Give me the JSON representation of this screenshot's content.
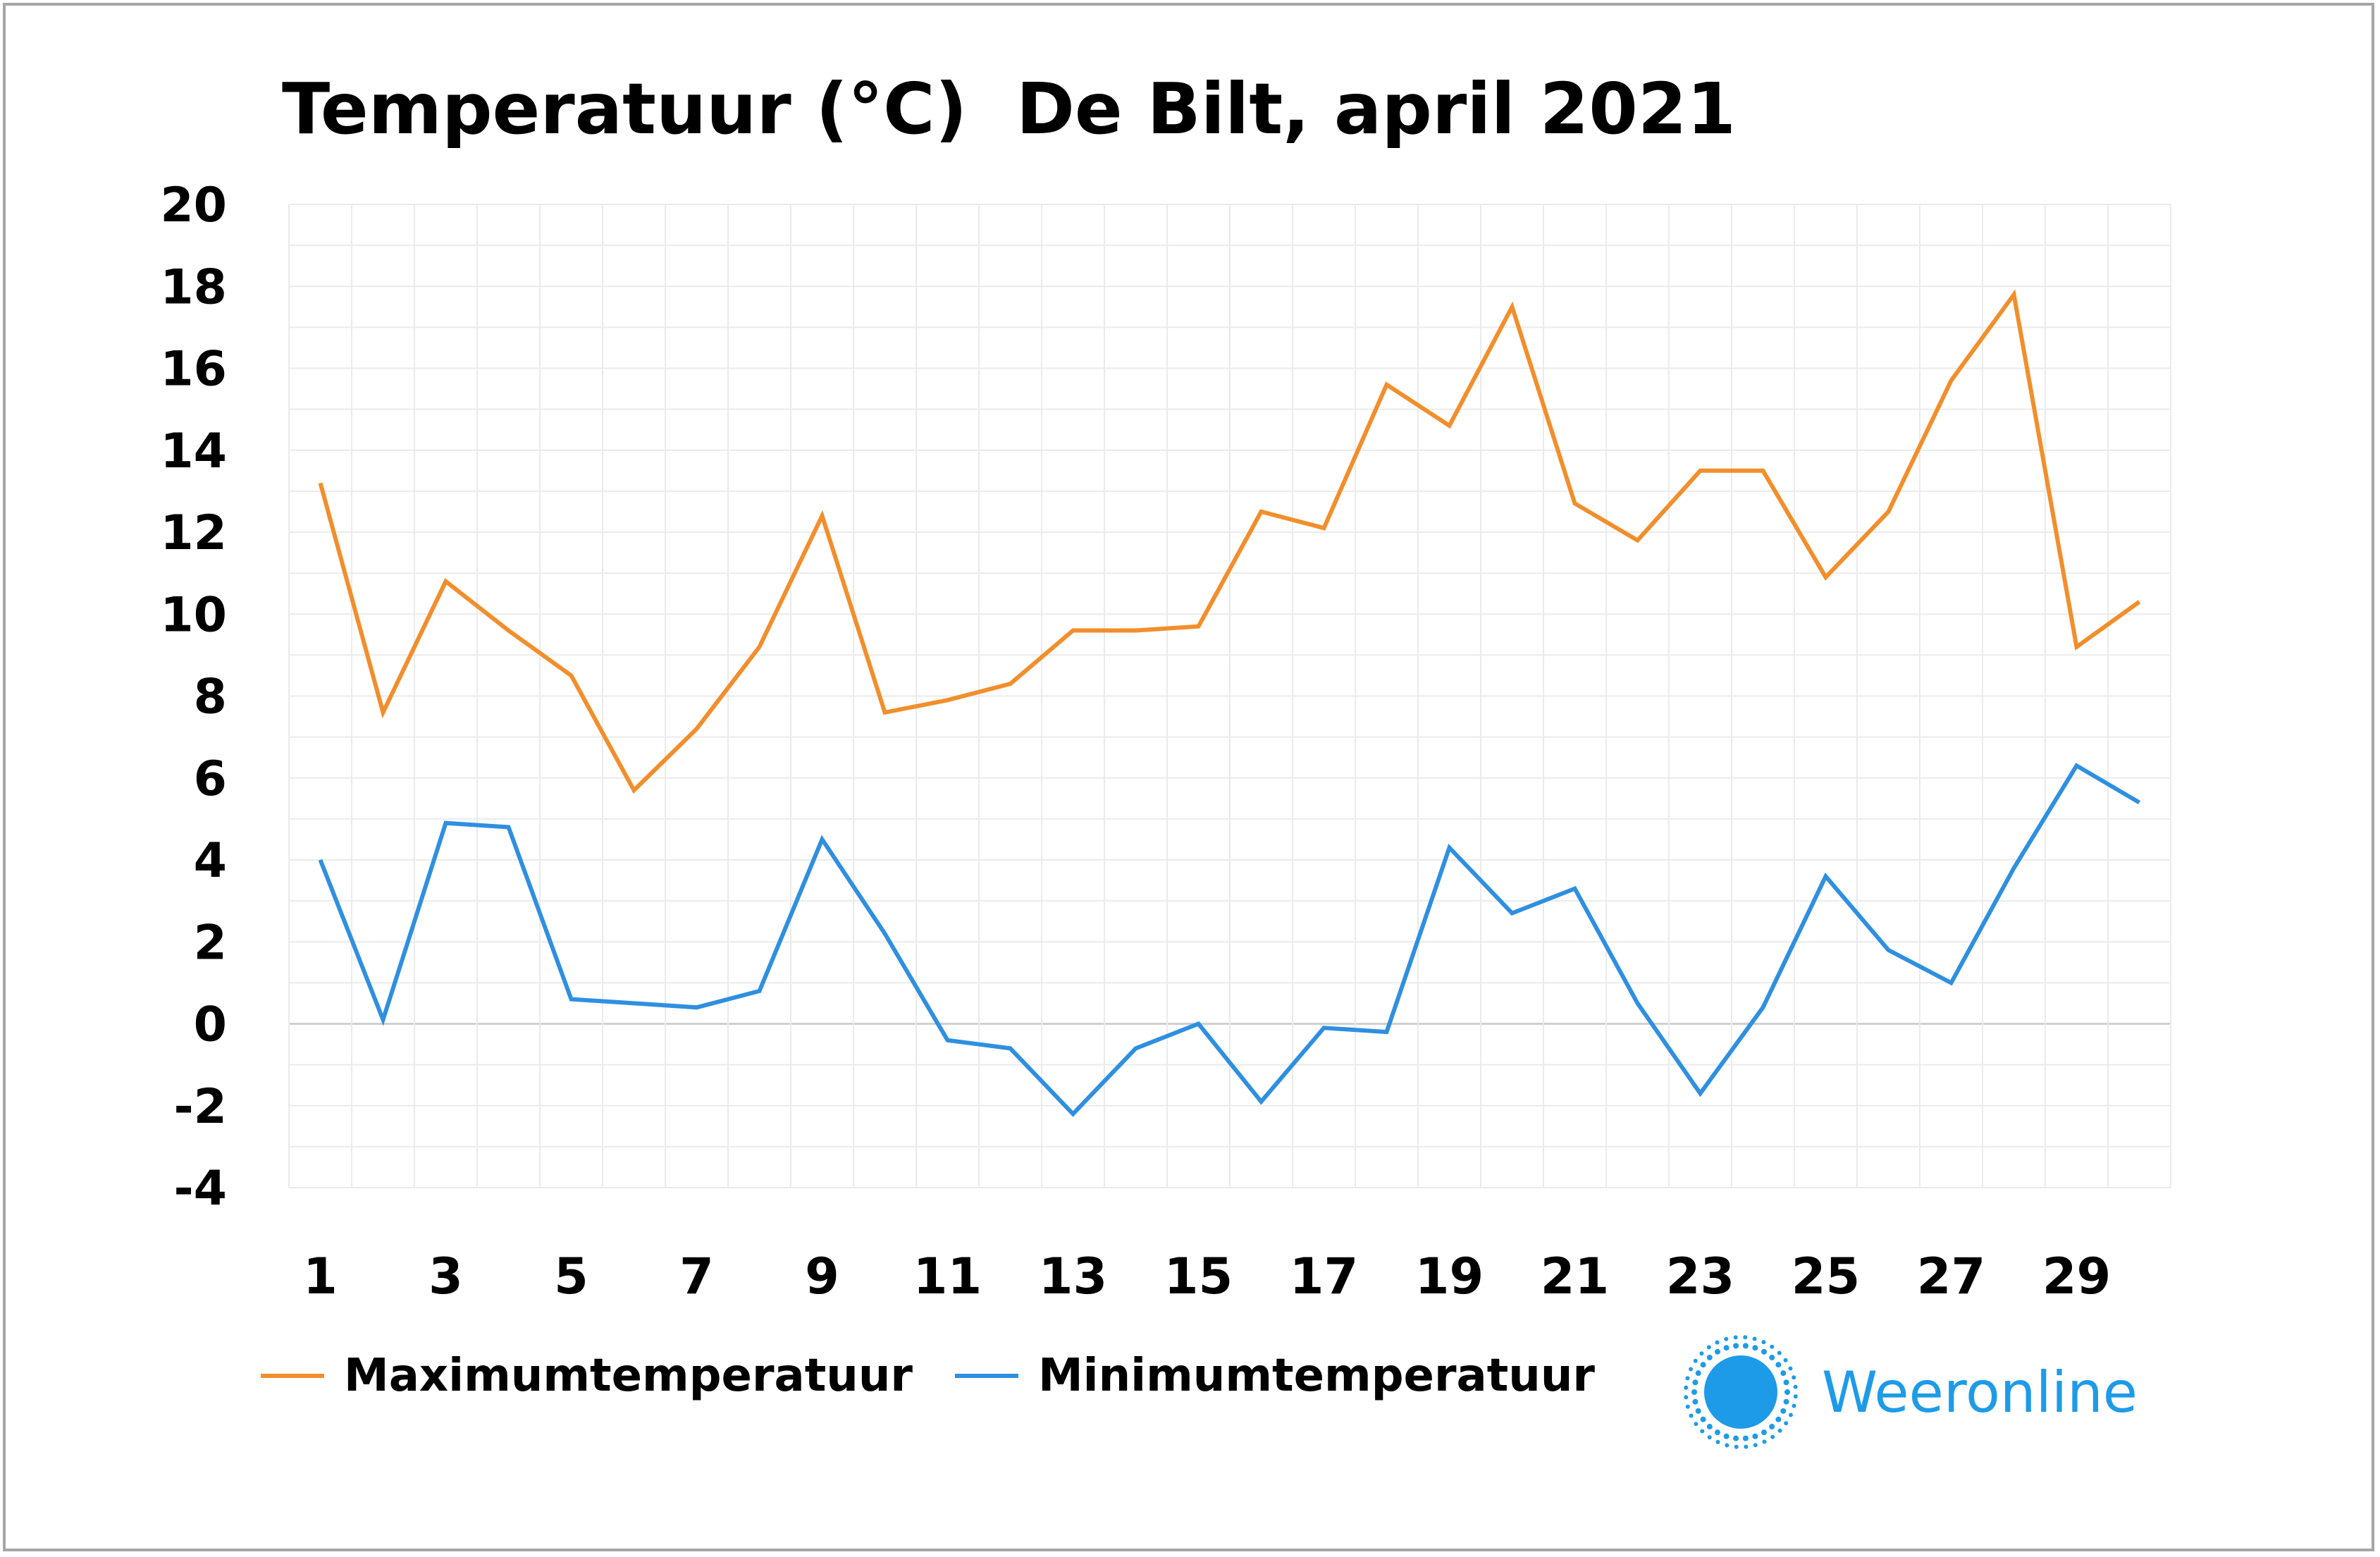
{
  "chart_data": {
    "type": "line",
    "title": "Temperatuur (°C)  De Bilt, april 2021",
    "xlabel": "",
    "ylabel": "",
    "x": [
      1,
      2,
      3,
      4,
      5,
      6,
      7,
      8,
      9,
      10,
      11,
      12,
      13,
      14,
      15,
      16,
      17,
      18,
      19,
      20,
      21,
      22,
      23,
      24,
      25,
      26,
      27,
      28,
      29,
      30
    ],
    "x_tick_labels": [
      "1",
      "3",
      "5",
      "7",
      "9",
      "11",
      "13",
      "15",
      "17",
      "19",
      "21",
      "23",
      "25",
      "27",
      "29"
    ],
    "y_tick_labels": [
      "20",
      "18",
      "16",
      "14",
      "12",
      "10",
      "8",
      "6",
      "4",
      "2",
      "0",
      "-2",
      "-4"
    ],
    "ylim": [
      -4,
      20
    ],
    "grid": true,
    "legend_position": "bottom-left",
    "series": [
      {
        "name": "Maximumtemperatuur",
        "color": "#f28e2b",
        "values": [
          13.2,
          7.6,
          10.8,
          9.6,
          8.5,
          5.7,
          7.2,
          9.2,
          12.4,
          7.6,
          7.9,
          8.3,
          9.6,
          9.6,
          9.7,
          12.5,
          12.1,
          15.6,
          14.6,
          17.5,
          12.7,
          11.8,
          13.5,
          13.5,
          10.9,
          12.5,
          15.7,
          17.8,
          9.2,
          10.3
        ]
      },
      {
        "name": "Minimumtemperatuur",
        "color": "#2f8fe0",
        "values": [
          4.0,
          0.1,
          4.9,
          4.8,
          0.6,
          0.5,
          0.4,
          0.8,
          4.5,
          2.2,
          -0.4,
          -0.6,
          -2.2,
          -0.6,
          0.0,
          -1.9,
          -0.1,
          -0.2,
          4.3,
          2.7,
          3.3,
          0.5,
          -1.7,
          0.4,
          3.6,
          1.8,
          1.0,
          3.8,
          6.3,
          5.4
        ]
      }
    ]
  },
  "branding": {
    "logo_text": "Weeronline",
    "logo_icon": "sun-icon",
    "logo_color": "#1e9be8"
  },
  "colors": {
    "grid": "#ebebeb",
    "zero_line": "#d0d0d0",
    "frame": "#a6a6a6"
  }
}
